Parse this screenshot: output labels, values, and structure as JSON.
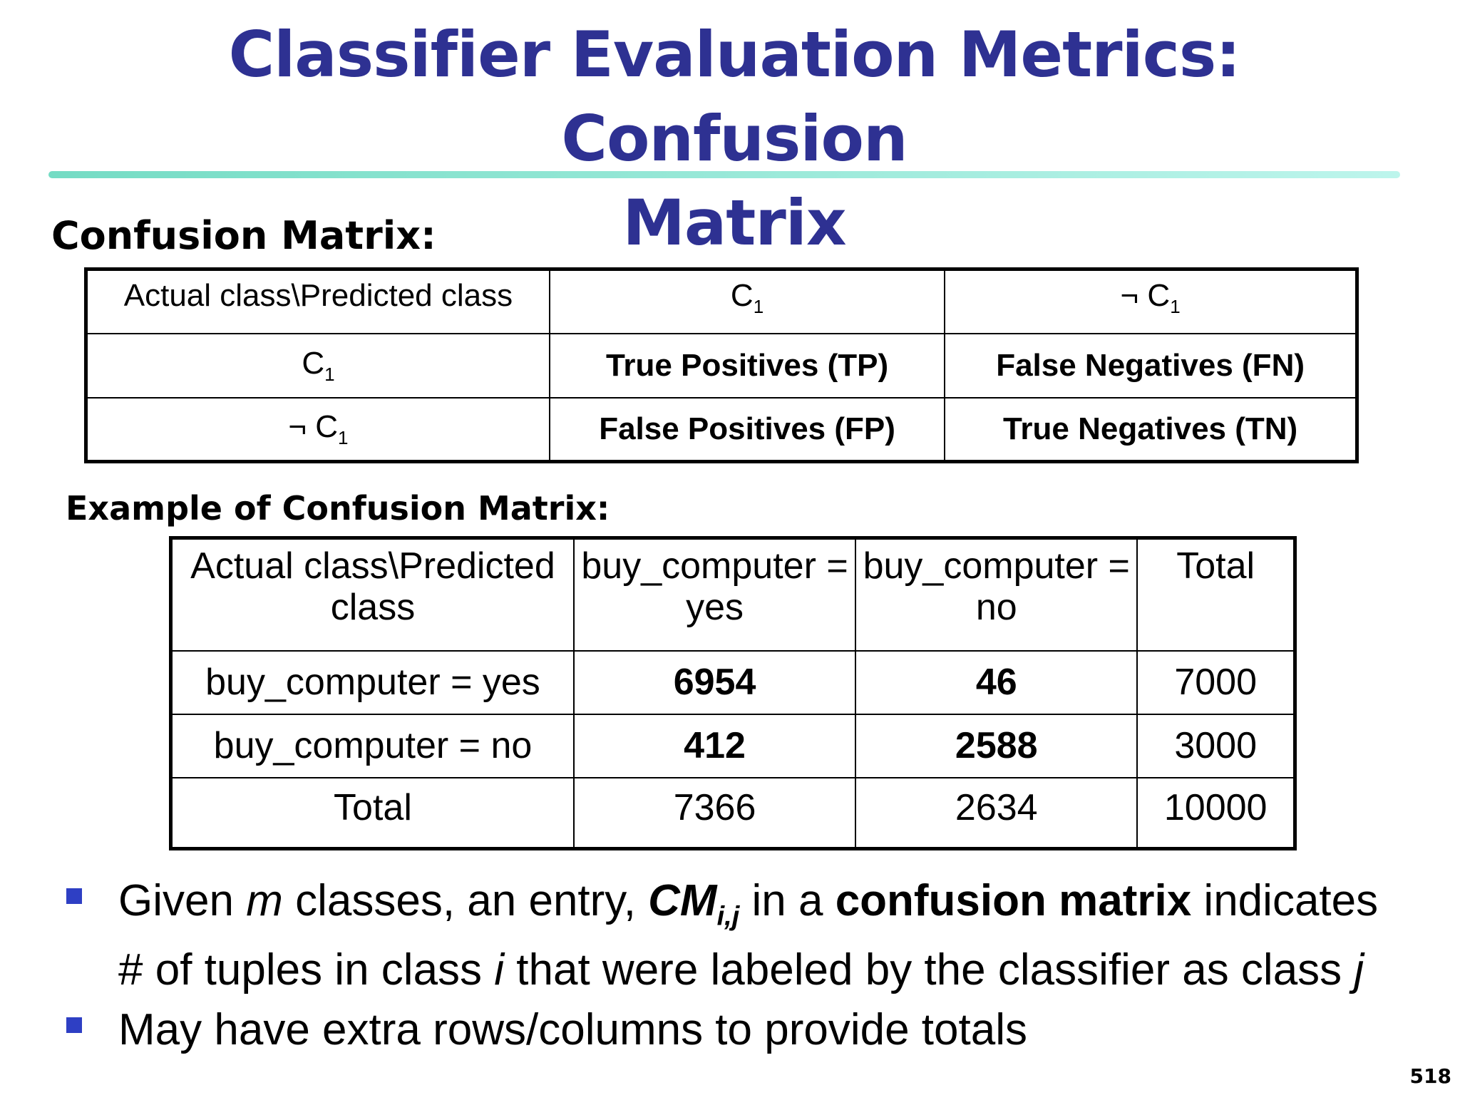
{
  "title_line1": "Classifier Evaluation Metrics: Confusion",
  "title_line2": "Matrix",
  "confusion_heading": "Confusion Matrix:",
  "cm": {
    "header": "Actual class\\Predicted class",
    "c": "C",
    "sub1": "1",
    "not_c": "¬ C",
    "tp": "True Positives (TP)",
    "fn": "False Negatives (FN)",
    "fp": "False Positives (FP)",
    "tn": "True Negatives (TN)"
  },
  "example_heading": "Example of Confusion Matrix:",
  "example": {
    "headers": [
      "Actual class\\Predicted class",
      "buy_computer =  yes",
      "buy_computer = no",
      "Total"
    ],
    "rows": [
      [
        "buy_computer = yes",
        "6954",
        "46",
        "7000"
      ],
      [
        "buy_computer = no",
        "412",
        "2588",
        "3000"
      ],
      [
        "Total",
        "7366",
        "2634",
        "10000"
      ]
    ]
  },
  "bullet1": {
    "t1": "Given ",
    "m": "m",
    "t2": " classes, an entry, ",
    "cm": "CM",
    "ij": "i,j",
    "t3": "  in a ",
    "bold": "confusion matrix",
    "t4": " indicates # of tuples in class ",
    "i": "i",
    "t5": "  that were labeled by the classifier as class ",
    "j": "j"
  },
  "bullet2": "May have extra rows/columns to provide totals",
  "page_number": "518",
  "colors": {
    "title": "#2e3192",
    "rule_start": "#74dcc4",
    "rule_end": "#bdf5ec",
    "bullet": "#2e3fc4"
  }
}
